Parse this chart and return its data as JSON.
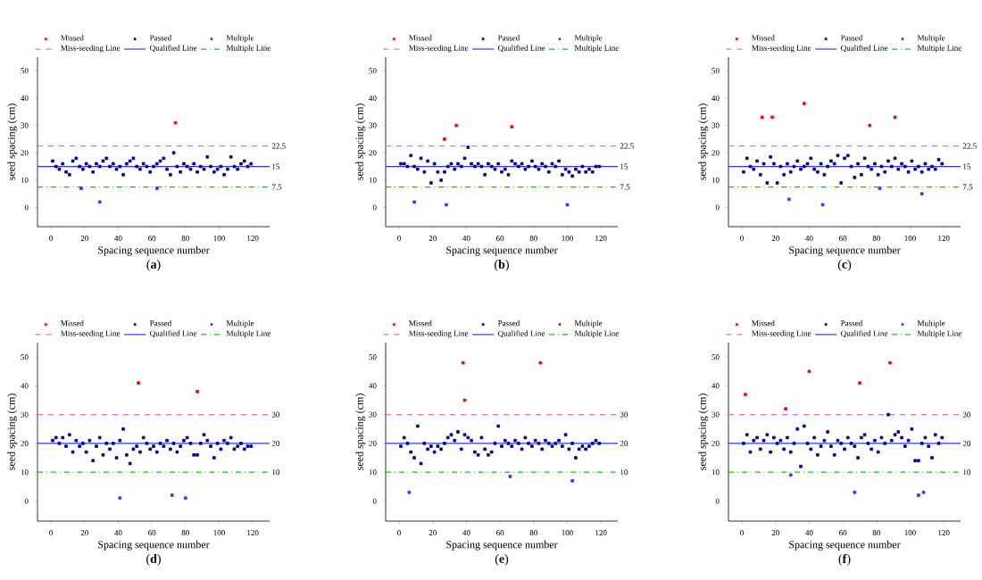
{
  "chart_data": [
    {
      "type": "scatter",
      "title": "(**a**)",
      "xlabel": "Spacing sequence number",
      "ylabel": "seed spacing (cm)",
      "xlim": [
        -8,
        130
      ],
      "ylim": [
        -7,
        55
      ],
      "xticks": [
        0,
        20,
        40,
        60,
        80,
        100,
        120
      ],
      "yticks": [
        0,
        10,
        20,
        30,
        40,
        50
      ],
      "marker": "square",
      "legend": "top",
      "series": [
        {
          "name": "Missed",
          "color": "#ff0000",
          "x": [
            74
          ],
          "values": [
            31
          ]
        },
        {
          "name": "Passed",
          "color": "#00008b",
          "x": [
            1,
            3,
            5,
            7,
            9,
            11,
            13,
            15,
            17,
            19,
            21,
            23,
            25,
            27,
            29,
            31,
            33,
            35,
            37,
            39,
            41,
            43,
            45,
            47,
            49,
            51,
            53,
            55,
            57,
            59,
            61,
            63,
            65,
            67,
            69,
            71,
            73,
            75,
            77,
            79,
            81,
            83,
            85,
            87,
            89,
            91,
            93,
            95,
            97,
            99,
            101,
            103,
            105,
            107,
            109,
            111,
            113,
            115,
            117,
            119
          ],
          "values": [
            17,
            15,
            14,
            16,
            13,
            12,
            17,
            18,
            15,
            14,
            16,
            15,
            13,
            16,
            15,
            17,
            18,
            15,
            16,
            14,
            15,
            12,
            16,
            17,
            18,
            15,
            14,
            16,
            15,
            13,
            15,
            16,
            17,
            18,
            14,
            12,
            20,
            15,
            13,
            16,
            15,
            14,
            16,
            13,
            15,
            14,
            18.5,
            15,
            13,
            14,
            15,
            12,
            14,
            18.5,
            15,
            14,
            16,
            17,
            15,
            16
          ]
        },
        {
          "name": "Multiple",
          "color": "#3333ff",
          "x": [
            18,
            29,
            63
          ],
          "values": [
            7,
            2,
            7
          ]
        },
        {
          "name": "Miss-seeding Line",
          "type": "line",
          "marker": "none",
          "line_style": "dashed",
          "color": "#ff66cc",
          "x": [
            -8,
            130
          ],
          "values": [
            22.5,
            22.5
          ],
          "value_labels": [
            null,
            "22.5"
          ]
        },
        {
          "name": "Qualified Line",
          "type": "line",
          "marker": "none",
          "line_style": "solid",
          "color": "#3333ff",
          "x": [
            -8,
            130
          ],
          "values": [
            15,
            15
          ],
          "value_labels": [
            null,
            "15"
          ]
        },
        {
          "name": "Multiple Line",
          "type": "line",
          "marker": "none",
          "line_style": "dashdot",
          "color": "#00cc00",
          "x": [
            -8,
            130
          ],
          "values": [
            7.5,
            7.5
          ],
          "value_labels": [
            null,
            "7.5"
          ]
        }
      ]
    },
    {
      "type": "scatter",
      "title": "(**b**)",
      "xlabel": "Spacing sequence number",
      "ylabel": "seed spacing (cm)",
      "xlim": [
        -8,
        130
      ],
      "ylim": [
        -7,
        55
      ],
      "xticks": [
        0,
        20,
        40,
        60,
        80,
        100,
        120
      ],
      "yticks": [
        0,
        10,
        20,
        30,
        40,
        50
      ],
      "marker": "square",
      "legend": "top",
      "series": [
        {
          "name": "Missed",
          "color": "#ff0000",
          "x": [
            27,
            34,
            67
          ],
          "values": [
            25,
            30,
            29.5
          ]
        },
        {
          "name": "Passed",
          "color": "#00008b",
          "x": [
            1,
            3,
            5,
            7,
            9,
            11,
            13,
            15,
            17,
            19,
            21,
            23,
            25,
            27,
            29,
            31,
            33,
            35,
            37,
            39,
            41,
            43,
            45,
            47,
            49,
            51,
            53,
            55,
            57,
            59,
            61,
            63,
            65,
            67,
            69,
            71,
            73,
            75,
            77,
            79,
            81,
            83,
            85,
            87,
            89,
            91,
            93,
            95,
            97,
            99,
            101,
            103,
            105,
            107,
            109,
            111,
            113,
            115,
            117,
            119
          ],
          "values": [
            16,
            16,
            15,
            19,
            15,
            14,
            18,
            13,
            17,
            9,
            16,
            13,
            10,
            13,
            15,
            16,
            14,
            16,
            15,
            18,
            22,
            16,
            15,
            16,
            15,
            12,
            16,
            15,
            14,
            16,
            13,
            14,
            12,
            17,
            16,
            15,
            16,
            14,
            15,
            17,
            15,
            14,
            16,
            15,
            13,
            16,
            15,
            17,
            12,
            14,
            13,
            11.5,
            14,
            13,
            15,
            13,
            14,
            13,
            15,
            15
          ]
        },
        {
          "name": "Multiple",
          "color": "#3333ff",
          "x": [
            9,
            28,
            100
          ],
          "values": [
            2,
            1,
            1
          ]
        },
        {
          "name": "Miss-seeding Line",
          "type": "line",
          "marker": "none",
          "line_style": "dashed",
          "color": "#ff66cc",
          "x": [
            -8,
            130
          ],
          "values": [
            22.5,
            22.5
          ],
          "value_labels": [
            null,
            "22.5"
          ]
        },
        {
          "name": "Qualified Line",
          "type": "line",
          "marker": "none",
          "line_style": "solid",
          "color": "#3333ff",
          "x": [
            -8,
            130
          ],
          "values": [
            15,
            15
          ],
          "value_labels": [
            null,
            "15"
          ]
        },
        {
          "name": "Multiple Line",
          "type": "line",
          "marker": "none",
          "line_style": "dashdot",
          "color": "#00cc00",
          "x": [
            -8,
            130
          ],
          "values": [
            7.5,
            7.5
          ],
          "value_labels": [
            null,
            "7.5"
          ]
        }
      ]
    },
    {
      "type": "scatter",
      "title": "(**c**)",
      "xlabel": "Spacing sequence number",
      "ylabel": "seed spacing (cm)",
      "xlim": [
        -8,
        130
      ],
      "ylim": [
        -7,
        55
      ],
      "xticks": [
        0,
        20,
        40,
        60,
        80,
        100,
        120
      ],
      "yticks": [
        0,
        10,
        20,
        30,
        40,
        50
      ],
      "marker": "square",
      "legend": "top",
      "series": [
        {
          "name": "Missed",
          "color": "#ff0000",
          "x": [
            12,
            18,
            37,
            76,
            91
          ],
          "values": [
            33,
            33,
            38,
            30,
            33
          ]
        },
        {
          "name": "Passed",
          "color": "#00008b",
          "x": [
            1,
            3,
            5,
            7,
            9,
            11,
            13,
            15,
            17,
            19,
            21,
            23,
            25,
            27,
            29,
            31,
            33,
            35,
            37,
            39,
            41,
            43,
            45,
            47,
            49,
            51,
            53,
            55,
            57,
            59,
            61,
            63,
            65,
            67,
            69,
            71,
            73,
            75,
            77,
            79,
            81,
            83,
            85,
            87,
            89,
            91,
            93,
            95,
            97,
            99,
            101,
            103,
            105,
            107,
            109,
            111,
            113,
            115,
            117,
            119
          ],
          "values": [
            13,
            18,
            15,
            14,
            17,
            12,
            16,
            9,
            18.5,
            16,
            9,
            15,
            12,
            16,
            13,
            15,
            17,
            14,
            15,
            16,
            18,
            14,
            13,
            16,
            12,
            15,
            17,
            16,
            19,
            9,
            18,
            19,
            15,
            11,
            16,
            12,
            18,
            15,
            14,
            16,
            12,
            15,
            13,
            17,
            15,
            18,
            14,
            16,
            15,
            13,
            17,
            14,
            15,
            13,
            16,
            14,
            15,
            14,
            17.5,
            16
          ]
        },
        {
          "name": "Multiple",
          "color": "#3333ff",
          "x": [
            28,
            48,
            82,
            107
          ],
          "values": [
            3,
            1,
            7,
            5
          ]
        },
        {
          "name": "Miss-seeding Line",
          "type": "line",
          "marker": "none",
          "line_style": "dashed",
          "color": "#ff66cc",
          "x": [
            -8,
            130
          ],
          "values": [
            22.5,
            22.5
          ],
          "value_labels": [
            null,
            "22.5"
          ]
        },
        {
          "name": "Qualified Line",
          "type": "line",
          "marker": "none",
          "line_style": "solid",
          "color": "#3333ff",
          "x": [
            -8,
            130
          ],
          "values": [
            15,
            15
          ],
          "value_labels": [
            null,
            "15"
          ]
        },
        {
          "name": "Multiple Line",
          "type": "line",
          "marker": "none",
          "line_style": "dashdot",
          "color": "#00cc00",
          "x": [
            -8,
            130
          ],
          "values": [
            7.5,
            7.5
          ],
          "value_labels": [
            null,
            "7.5"
          ]
        }
      ]
    },
    {
      "type": "scatter",
      "title": "(**d**)",
      "xlabel": "Spacing sequence number",
      "ylabel": "seed spacing (cm)",
      "xlim": [
        -8,
        130
      ],
      "ylim": [
        -7,
        55
      ],
      "xticks": [
        0,
        20,
        40,
        60,
        80,
        100,
        120
      ],
      "yticks": [
        0,
        10,
        20,
        30,
        40,
        50
      ],
      "marker": "square",
      "legend": "top",
      "series": [
        {
          "name": "Missed",
          "color": "#ff0000",
          "x": [
            52,
            87
          ],
          "values": [
            41,
            38
          ]
        },
        {
          "name": "Passed",
          "color": "#00008b",
          "x": [
            1,
            3,
            5,
            7,
            9,
            11,
            13,
            15,
            17,
            19,
            21,
            23,
            25,
            27,
            29,
            31,
            33,
            35,
            37,
            39,
            41,
            43,
            45,
            47,
            49,
            51,
            53,
            55,
            57,
            59,
            61,
            63,
            65,
            67,
            69,
            71,
            73,
            75,
            77,
            79,
            81,
            83,
            85,
            87,
            89,
            91,
            93,
            95,
            97,
            99,
            101,
            103,
            105,
            107,
            109,
            111,
            113,
            115,
            117,
            119
          ],
          "values": [
            21,
            22,
            20,
            22,
            19,
            23,
            17,
            21,
            19,
            20,
            17,
            21,
            14,
            19,
            22,
            16,
            20,
            18,
            20,
            15,
            21,
            25,
            16,
            13,
            18,
            19,
            17,
            22,
            20,
            18,
            19,
            17,
            20,
            19,
            21,
            18,
            20,
            17,
            19,
            21,
            22,
            20,
            16,
            16,
            20,
            23,
            21,
            19,
            15,
            20,
            18,
            21,
            20,
            22,
            18,
            19,
            20,
            18,
            19,
            19
          ]
        },
        {
          "name": "Multiple",
          "color": "#3333ff",
          "x": [
            41,
            72,
            80
          ],
          "values": [
            1,
            2,
            1
          ]
        },
        {
          "name": "Miss-seeding Line",
          "type": "line",
          "marker": "none",
          "line_style": "dashed",
          "color": "#ff66cc",
          "x": [
            -8,
            130
          ],
          "values": [
            30,
            30
          ],
          "value_labels": [
            null,
            "30"
          ]
        },
        {
          "name": "Qualified Line",
          "type": "line",
          "marker": "none",
          "line_style": "solid",
          "color": "#3333ff",
          "x": [
            -8,
            130
          ],
          "values": [
            20,
            20
          ],
          "value_labels": [
            null,
            "20"
          ]
        },
        {
          "name": "Multiple Line",
          "type": "line",
          "marker": "none",
          "line_style": "dashdot",
          "color": "#00cc00",
          "x": [
            -8,
            130
          ],
          "values": [
            10,
            10
          ],
          "value_labels": [
            null,
            "10"
          ]
        }
      ]
    },
    {
      "type": "scatter",
      "title": "(**e**)",
      "xlabel": "Spacing sequence number",
      "ylabel": "seed spacing (cm)",
      "xlim": [
        -8,
        130
      ],
      "ylim": [
        -7,
        55
      ],
      "xticks": [
        0,
        20,
        40,
        60,
        80,
        100,
        120
      ],
      "yticks": [
        0,
        10,
        20,
        30,
        40,
        50
      ],
      "marker": "square",
      "legend": "top",
      "series": [
        {
          "name": "Missed",
          "color": "#ff0000",
          "x": [
            38,
            39,
            84
          ],
          "values": [
            48,
            35,
            48
          ]
        },
        {
          "name": "Passed",
          "color": "#00008b",
          "x": [
            1,
            3,
            5,
            7,
            9,
            11,
            13,
            15,
            17,
            19,
            21,
            23,
            25,
            27,
            29,
            31,
            33,
            35,
            37,
            39,
            41,
            43,
            45,
            47,
            49,
            51,
            53,
            55,
            57,
            59,
            61,
            63,
            65,
            67,
            69,
            71,
            73,
            75,
            77,
            79,
            81,
            83,
            85,
            87,
            89,
            91,
            93,
            95,
            97,
            99,
            101,
            103,
            105,
            107,
            109,
            111,
            113,
            115,
            117,
            119
          ],
          "values": [
            19,
            22,
            20,
            17,
            15,
            26,
            13,
            20,
            18,
            19,
            17,
            19,
            18,
            20,
            22,
            23,
            21,
            24,
            18,
            23,
            22,
            21,
            17,
            16,
            22,
            18,
            16,
            17,
            20,
            26,
            19,
            21,
            20,
            19,
            21,
            20,
            18,
            22,
            20,
            19,
            21,
            20,
            18,
            21,
            20,
            19,
            20,
            21,
            19,
            23,
            18,
            20,
            15,
            18,
            19,
            18,
            19,
            20,
            21,
            20
          ]
        },
        {
          "name": "Multiple",
          "color": "#3333ff",
          "x": [
            6,
            66,
            103
          ],
          "values": [
            3,
            8.5,
            7
          ]
        },
        {
          "name": "Miss-seeding Line",
          "type": "line",
          "marker": "none",
          "line_style": "dashed",
          "color": "#ff66cc",
          "x": [
            -8,
            130
          ],
          "values": [
            30,
            30
          ],
          "value_labels": [
            null,
            "30"
          ]
        },
        {
          "name": "Qualified Line",
          "type": "line",
          "marker": "none",
          "line_style": "solid",
          "color": "#3333ff",
          "x": [
            -8,
            130
          ],
          "values": [
            20,
            20
          ],
          "value_labels": [
            null,
            "20"
          ]
        },
        {
          "name": "Multiple Line",
          "type": "line",
          "marker": "none",
          "line_style": "dashdot",
          "color": "#00cc00",
          "x": [
            -8,
            130
          ],
          "values": [
            10,
            10
          ],
          "value_labels": [
            null,
            "10"
          ]
        }
      ]
    },
    {
      "type": "scatter",
      "title": "(**f**)",
      "xlabel": "Spacing sequence number",
      "ylabel": "seed spacing (cm)",
      "xlim": [
        -8,
        130
      ],
      "ylim": [
        -7,
        55
      ],
      "xticks": [
        0,
        20,
        40,
        60,
        80,
        100,
        120
      ],
      "yticks": [
        0,
        10,
        20,
        30,
        40,
        50
      ],
      "marker": "square",
      "legend": "top",
      "series": [
        {
          "name": "Missed",
          "color": "#ff0000",
          "x": [
            2,
            26,
            40,
            70,
            88
          ],
          "values": [
            37,
            32,
            45,
            41,
            48
          ]
        },
        {
          "name": "Passed",
          "color": "#00008b",
          "x": [
            1,
            3,
            5,
            7,
            9,
            11,
            13,
            15,
            17,
            19,
            21,
            23,
            25,
            27,
            29,
            31,
            33,
            35,
            37,
            39,
            41,
            43,
            45,
            47,
            49,
            51,
            53,
            55,
            57,
            59,
            61,
            63,
            65,
            67,
            69,
            71,
            73,
            75,
            77,
            79,
            81,
            83,
            85,
            87,
            89,
            91,
            93,
            95,
            97,
            99,
            101,
            103,
            105,
            107,
            109,
            111,
            113,
            115,
            117,
            119
          ],
          "values": [
            20,
            23,
            17,
            21,
            22,
            18,
            21,
            23,
            17,
            22,
            20,
            21,
            18,
            22,
            17,
            20,
            25,
            12,
            26,
            20,
            18,
            22,
            16,
            19,
            21,
            24,
            19,
            16,
            21,
            20,
            18,
            22,
            20,
            19,
            15,
            22,
            23,
            20,
            18,
            21,
            17,
            22,
            20,
            30,
            21,
            23,
            24,
            22,
            19,
            21,
            25,
            14,
            14,
            20,
            22,
            19,
            15,
            23,
            20,
            22
          ]
        },
        {
          "name": "Multiple",
          "color": "#3333ff",
          "x": [
            29,
            67,
            105,
            108
          ],
          "values": [
            9,
            3,
            2,
            3
          ]
        },
        {
          "name": "Miss-seeding Line",
          "type": "line",
          "marker": "none",
          "line_style": "dashed",
          "color": "#ff66cc",
          "x": [
            -8,
            130
          ],
          "values": [
            30,
            30
          ],
          "value_labels": [
            null,
            "30"
          ]
        },
        {
          "name": "Qualified Line",
          "type": "line",
          "marker": "none",
          "line_style": "solid",
          "color": "#3333ff",
          "x": [
            -8,
            130
          ],
          "values": [
            20,
            20
          ],
          "value_labels": [
            null,
            "20"
          ]
        },
        {
          "name": "Multiple Line",
          "type": "line",
          "marker": "none",
          "line_style": "dashdot",
          "color": "#00cc00",
          "x": [
            -8,
            130
          ],
          "values": [
            10,
            10
          ],
          "value_labels": [
            null,
            "10"
          ]
        }
      ]
    }
  ]
}
